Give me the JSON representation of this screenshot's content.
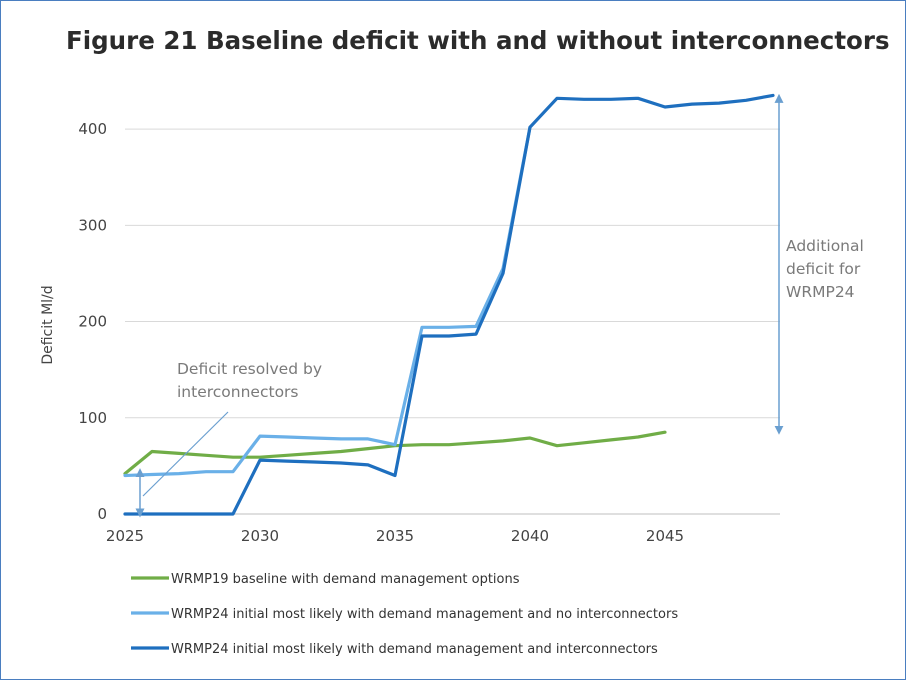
{
  "chart_data": {
    "type": "line",
    "title": "Figure 21 Baseline deficit with and without interconnectors",
    "ylabel": "Deficit Ml/d",
    "xlabel": "",
    "xlim": [
      2025,
      2049
    ],
    "ylim": [
      0,
      450
    ],
    "x_ticks": [
      "2025",
      "2030",
      "2035",
      "2040",
      "2045"
    ],
    "y_ticks": [
      "0",
      "100",
      "200",
      "300",
      "400"
    ],
    "grid": true,
    "legend_position": "bottom",
    "series": [
      {
        "name": "WRMP19 baseline with demand management options",
        "color": "#70ad47",
        "points": [
          [
            2025,
            42
          ],
          [
            2026,
            65
          ],
          [
            2027,
            63
          ],
          [
            2028,
            61
          ],
          [
            2029,
            59
          ],
          [
            2030,
            59
          ],
          [
            2031,
            61
          ],
          [
            2032,
            63
          ],
          [
            2033,
            65
          ],
          [
            2034,
            68
          ],
          [
            2035,
            71
          ],
          [
            2036,
            72
          ],
          [
            2037,
            72
          ],
          [
            2038,
            74
          ],
          [
            2039,
            76
          ],
          [
            2040,
            79
          ],
          [
            2041,
            71
          ],
          [
            2042,
            74
          ],
          [
            2043,
            77
          ],
          [
            2044,
            80
          ],
          [
            2045,
            85
          ]
        ]
      },
      {
        "name": "WRMP24 initial most likely with demand management and no interconnectors",
        "color": "#6ab0e8",
        "points": [
          [
            2025,
            40
          ],
          [
            2026,
            41
          ],
          [
            2027,
            42
          ],
          [
            2028,
            44
          ],
          [
            2029,
            44
          ],
          [
            2030,
            81
          ],
          [
            2031,
            80
          ],
          [
            2032,
            79
          ],
          [
            2033,
            78
          ],
          [
            2034,
            78
          ],
          [
            2035,
            72
          ],
          [
            2036,
            194
          ],
          [
            2037,
            194
          ],
          [
            2038,
            195
          ],
          [
            2039,
            255
          ],
          [
            2040,
            402
          ]
        ]
      },
      {
        "name": "WRMP24 initial most likely with demand management and interconnectors",
        "color": "#1e6fbf",
        "points": [
          [
            2025,
            0
          ],
          [
            2026,
            0
          ],
          [
            2027,
            0
          ],
          [
            2028,
            0
          ],
          [
            2029,
            0
          ],
          [
            2030,
            56
          ],
          [
            2031,
            55
          ],
          [
            2032,
            54
          ],
          [
            2033,
            53
          ],
          [
            2034,
            51
          ],
          [
            2035,
            40
          ],
          [
            2036,
            185
          ],
          [
            2037,
            185
          ],
          [
            2038,
            187
          ],
          [
            2039,
            250
          ],
          [
            2040,
            402
          ],
          [
            2041,
            432
          ],
          [
            2042,
            431
          ],
          [
            2043,
            431
          ],
          [
            2044,
            432
          ],
          [
            2045,
            423
          ],
          [
            2046,
            426
          ],
          [
            2047,
            427
          ],
          [
            2048,
            430
          ],
          [
            2049,
            435
          ]
        ]
      }
    ],
    "annotations": [
      {
        "lines": [
          "Deficit resolved by",
          "interconnectors"
        ]
      },
      {
        "lines": [
          "Additional",
          "deficit for",
          "WRMP24"
        ]
      }
    ]
  }
}
